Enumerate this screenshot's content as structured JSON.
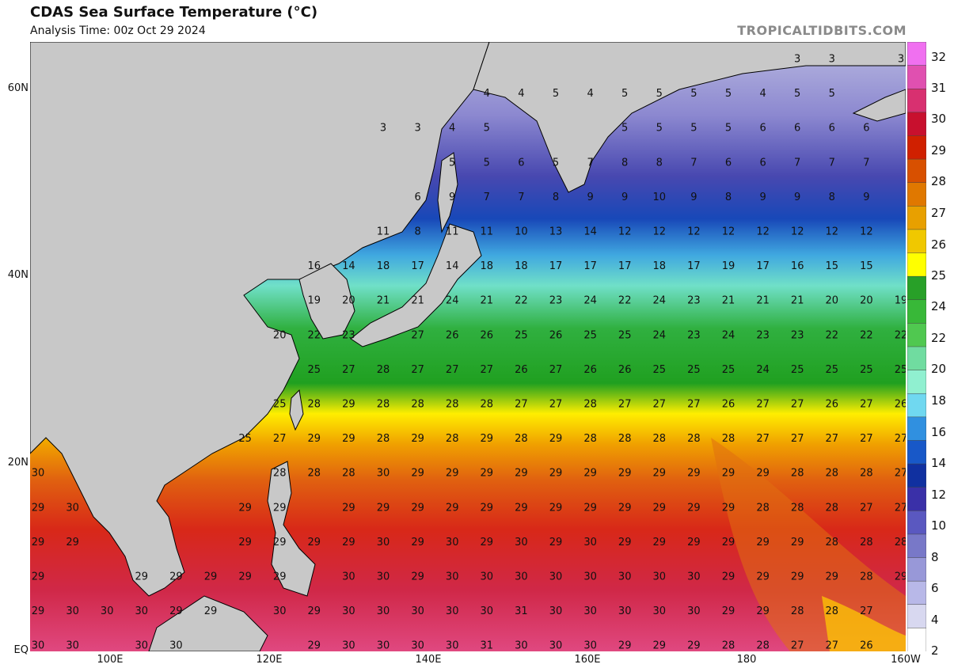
{
  "header": {
    "title": "CDAS Sea Surface Temperature (°C)",
    "subtitle": "Analysis Time: 00z Oct 29 2024",
    "brand": "TROPICALTIDBITS.COM"
  },
  "map": {
    "lat_labels": [
      "60N",
      "40N",
      "20N",
      "EQ"
    ],
    "lon_labels": [
      "100E",
      "120E",
      "140E",
      "160E",
      "180",
      "160W"
    ],
    "land_color": "#c8c8c8",
    "border_color": "#000000",
    "sst_grid": [
      [
        "",
        "",
        "",
        "",
        "",
        "",
        "",
        "",
        "",
        "",
        "",
        "",
        "",
        "",
        "",
        "",
        "",
        "",
        "",
        "",
        "",
        "",
        "3",
        "3",
        "",
        "3"
      ],
      [
        "",
        "",
        "",
        "",
        "",
        "",
        "",
        "",
        "",
        "",
        "",
        "",
        "",
        "4",
        "4",
        "5",
        "4",
        "5",
        "5",
        "5",
        "5",
        "4",
        "5",
        "5",
        "",
        ""
      ],
      [
        "",
        "",
        "",
        "",
        "",
        "",
        "",
        "",
        "",
        "",
        "3",
        "3",
        "4",
        "5",
        "",
        "",
        "",
        "5",
        "5",
        "5",
        "5",
        "6",
        "6",
        "6",
        "6",
        ""
      ],
      [
        "",
        "",
        "",
        "",
        "",
        "",
        "",
        "",
        "",
        "",
        "",
        "",
        "5",
        "5",
        "6",
        "5",
        "7",
        "8",
        "8",
        "7",
        "6",
        "6",
        "7",
        "7",
        "7",
        ""
      ],
      [
        "",
        "",
        "",
        "",
        "",
        "",
        "",
        "",
        "",
        "",
        "",
        "6",
        "9",
        "7",
        "7",
        "8",
        "9",
        "9",
        "10",
        "9",
        "8",
        "9",
        "9",
        "8",
        "9",
        ""
      ],
      [
        "",
        "",
        "",
        "",
        "",
        "",
        "",
        "",
        "",
        "",
        "11",
        "8",
        "11",
        "11",
        "10",
        "13",
        "14",
        "12",
        "12",
        "12",
        "12",
        "12",
        "12",
        "12",
        "12",
        ""
      ],
      [
        "",
        "",
        "",
        "",
        "",
        "",
        "",
        "",
        "16",
        "14",
        "18",
        "17",
        "14",
        "18",
        "18",
        "17",
        "17",
        "17",
        "18",
        "17",
        "19",
        "17",
        "16",
        "15",
        "15",
        ""
      ],
      [
        "",
        "",
        "",
        "",
        "",
        "",
        "",
        "",
        "19",
        "20",
        "21",
        "21",
        "24",
        "21",
        "22",
        "23",
        "24",
        "22",
        "24",
        "23",
        "21",
        "21",
        "21",
        "20",
        "20",
        "19"
      ],
      [
        "",
        "",
        "",
        "",
        "",
        "",
        "",
        "20",
        "22",
        "23",
        "",
        "27",
        "26",
        "26",
        "25",
        "26",
        "25",
        "25",
        "24",
        "23",
        "24",
        "23",
        "23",
        "22",
        "22",
        "22"
      ],
      [
        "",
        "",
        "",
        "",
        "",
        "",
        "",
        "",
        "25",
        "27",
        "28",
        "27",
        "27",
        "27",
        "26",
        "27",
        "26",
        "26",
        "25",
        "25",
        "25",
        "24",
        "25",
        "25",
        "25",
        "25"
      ],
      [
        "",
        "",
        "",
        "",
        "",
        "",
        "",
        "25",
        "28",
        "29",
        "28",
        "28",
        "28",
        "28",
        "27",
        "27",
        "28",
        "27",
        "27",
        "27",
        "26",
        "27",
        "27",
        "26",
        "27",
        "26"
      ],
      [
        "",
        "",
        "",
        "",
        "",
        "",
        "25",
        "27",
        "29",
        "29",
        "28",
        "29",
        "28",
        "29",
        "28",
        "29",
        "28",
        "28",
        "28",
        "28",
        "28",
        "27",
        "27",
        "27",
        "27",
        "27"
      ],
      [
        "30",
        "",
        "",
        "",
        "",
        "",
        "",
        "28",
        "28",
        "28",
        "30",
        "29",
        "29",
        "29",
        "29",
        "29",
        "29",
        "29",
        "29",
        "29",
        "29",
        "29",
        "28",
        "28",
        "28",
        "27"
      ],
      [
        "29",
        "30",
        "",
        "",
        "",
        "",
        "29",
        "29",
        "",
        "29",
        "29",
        "29",
        "29",
        "29",
        "29",
        "29",
        "29",
        "29",
        "29",
        "29",
        "29",
        "28",
        "28",
        "28",
        "27",
        "27"
      ],
      [
        "29",
        "29",
        "",
        "",
        "",
        "",
        "29",
        "29",
        "29",
        "29",
        "30",
        "29",
        "30",
        "29",
        "30",
        "29",
        "30",
        "29",
        "29",
        "29",
        "29",
        "29",
        "29",
        "28",
        "28",
        "28"
      ],
      [
        "29",
        "",
        "",
        "29",
        "29",
        "29",
        "29",
        "29",
        "",
        "30",
        "30",
        "29",
        "30",
        "30",
        "30",
        "30",
        "30",
        "30",
        "30",
        "30",
        "29",
        "29",
        "29",
        "29",
        "28",
        "29"
      ],
      [
        "29",
        "30",
        "30",
        "30",
        "29",
        "29",
        "",
        "30",
        "29",
        "30",
        "30",
        "30",
        "30",
        "30",
        "31",
        "30",
        "30",
        "30",
        "30",
        "30",
        "29",
        "29",
        "28",
        "28",
        "27",
        ""
      ],
      [
        "30",
        "30",
        "",
        "30",
        "30",
        "",
        "",
        "",
        "29",
        "30",
        "30",
        "30",
        "30",
        "31",
        "30",
        "30",
        "30",
        "29",
        "29",
        "29",
        "28",
        "28",
        "27",
        "27",
        "26",
        ""
      ]
    ]
  },
  "colorbar": {
    "labels": [
      "32",
      "31",
      "30",
      "29",
      "28",
      "27",
      "26",
      "25",
      "24",
      "22",
      "20",
      "18",
      "16",
      "14",
      "12",
      "10",
      "8",
      "6",
      "4",
      "2"
    ],
    "stops": [
      "#f070f0",
      "#e050b0",
      "#d83070",
      "#c8102e",
      "#d02000",
      "#d85000",
      "#e07800",
      "#e8a000",
      "#f0c800",
      "#ffff00",
      "#28a028",
      "#38b838",
      "#50c850",
      "#70dca0",
      "#90f0d0",
      "#70d8f0",
      "#3090e0",
      "#1858c8",
      "#1030a0",
      "#3a30a8",
      "#5a58c0",
      "#7878c8",
      "#9898d8",
      "#b8b8e8",
      "#d8d8f0",
      "#ffffff"
    ]
  }
}
